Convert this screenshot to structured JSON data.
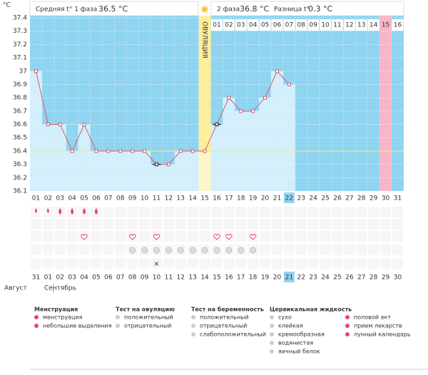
{
  "header": {
    "unit": "°C",
    "phase1_label": "Средняя t° 1 фаза",
    "phase1_value": "36.5 °C",
    "phase2_label": "2 фаза",
    "phase2_value": "36.8 °C",
    "diff_label": "Разница t°",
    "diff_value": "0.3 °C"
  },
  "chart_data": {
    "type": "line",
    "color": "#e0566e",
    "categories": [
      "01",
      "02",
      "03",
      "04",
      "05",
      "06",
      "07",
      "08",
      "09",
      "10",
      "11",
      "12",
      "13",
      "14",
      "15",
      "16",
      "17",
      "18",
      "19",
      "20",
      "21",
      "22",
      "23",
      "24",
      "25",
      "26",
      "27",
      "28",
      "29",
      "30",
      "31"
    ],
    "values": [
      37.0,
      36.6,
      36.6,
      36.4,
      36.6,
      36.4,
      36.4,
      36.4,
      36.4,
      36.4,
      36.3,
      36.3,
      36.4,
      36.4,
      36.4,
      36.6,
      36.8,
      36.7,
      36.7,
      36.8,
      37.0,
      36.9,
      null,
      null,
      null,
      null,
      null,
      null,
      null,
      null,
      null
    ],
    "ylim": [
      36.1,
      37.4
    ],
    "yticks": [
      36.1,
      36.2,
      36.3,
      36.4,
      36.5,
      36.6,
      36.7,
      36.8,
      36.9,
      37,
      37.1,
      37.2,
      37.3,
      37.4
    ],
    "coverline": 36.4,
    "ovulation_label": "ОВУЛЯЦИЯ",
    "grid": true,
    "phase2_days": [
      "01",
      "02",
      "03",
      "04",
      "05",
      "06",
      "07",
      "08",
      "09",
      "10",
      "11",
      "12",
      "13",
      "14",
      "15",
      "16"
    ],
    "dates": [
      "31",
      "01",
      "02",
      "03",
      "04",
      "05",
      "06",
      "07",
      "08",
      "09",
      "10",
      "11",
      "12",
      "13",
      "14",
      "15",
      "16",
      "17",
      "18",
      "19",
      "20",
      "21",
      "22",
      "23",
      "24",
      "25",
      "26",
      "27",
      "28",
      "29",
      "30"
    ],
    "months": [
      "Август",
      "Сентябрь"
    ]
  },
  "legend": [
    {
      "title": "Менструация",
      "items": [
        "менструация",
        "небольшие выделения"
      ]
    },
    {
      "title": "Тест на овуляцию",
      "items": [
        "положительный",
        "отрицательный"
      ]
    },
    {
      "title": "Тест на беременность",
      "items": [
        "положительный",
        "отрицательный",
        "слабоположительный"
      ]
    },
    {
      "title": "Цервикальная жидкость",
      "items": [
        "сухо",
        "клейкая",
        "кремообразная",
        "водянистая",
        "яичный белок"
      ]
    },
    {
      "title": null,
      "items": [
        "половой акт",
        "прием лекарств",
        "лунный календарь"
      ]
    }
  ]
}
